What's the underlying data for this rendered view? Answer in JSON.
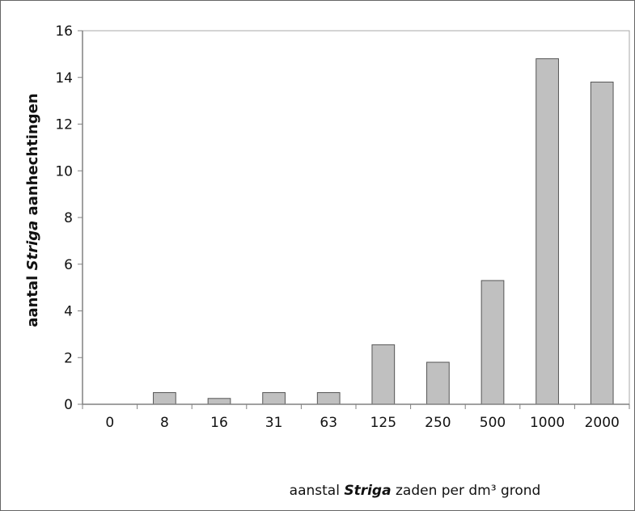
{
  "chart_data": {
    "type": "bar",
    "categories": [
      "0",
      "8",
      "16",
      "31",
      "63",
      "125",
      "250",
      "500",
      "1000",
      "2000"
    ],
    "values": [
      0,
      0.5,
      0.25,
      0.5,
      0.5,
      2.55,
      1.8,
      5.3,
      14.8,
      13.8
    ],
    "ylim": [
      0,
      16
    ],
    "yticks": [
      "0",
      "2",
      "4",
      "6",
      "8",
      "10",
      "12",
      "14",
      "16"
    ],
    "ylabel": {
      "pre": "aantal ",
      "em": "Striga",
      "post": " aanhechtingen"
    },
    "xlabel": {
      "pre": "aanstal ",
      "em": "Striga",
      "post": " zaden per dm³ grond"
    },
    "grid": false,
    "legend": "none",
    "colors": {
      "bar_fill": "#c0c0c0",
      "bar_stroke": "#555555",
      "axis": "#808080",
      "frame": "#666666"
    }
  }
}
